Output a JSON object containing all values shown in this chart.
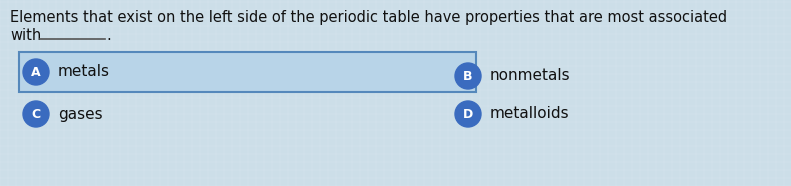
{
  "background_color": "#ccdee8",
  "title_line1": "Elements that exist on the left side of the periodic table have properties that are most associated",
  "title_line2": "with",
  "options": [
    {
      "label": "A",
      "text": "metals",
      "highlighted": true
    },
    {
      "label": "B",
      "text": "nonmetals",
      "highlighted": false
    },
    {
      "label": "C",
      "text": "gases",
      "highlighted": false
    },
    {
      "label": "D",
      "text": "metalloids",
      "highlighted": false
    }
  ],
  "circle_color": "#3a6bbf",
  "highlight_box_facecolor": "#b8d4e8",
  "highlight_box_edgecolor": "#5588bb",
  "text_color": "#111111",
  "font_size_title": 10.5,
  "font_size_options": 11,
  "font_size_circle": 9
}
